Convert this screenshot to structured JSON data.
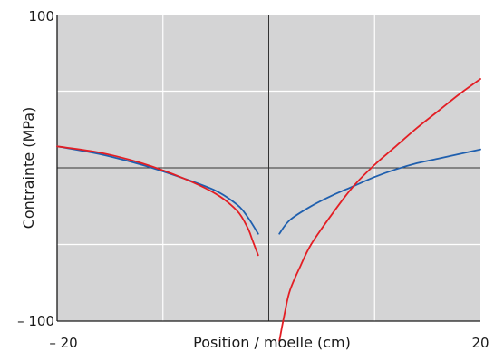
{
  "chart_data": {
    "type": "line",
    "title": "",
    "xlabel": "Position / moelle (cm)",
    "ylabel": "Contrainte (MPa)",
    "xlim": [
      -20,
      20
    ],
    "ylim": [
      -100,
      100
    ],
    "x_tick_labels": [
      "– 20",
      "20"
    ],
    "y_tick_labels": [
      "100",
      "– 100"
    ],
    "grid": true,
    "series": [
      {
        "color": "#1f5fae",
        "segments": [
          [
            [
              -20,
              14
            ],
            [
              -16,
              9
            ],
            [
              -12,
              2
            ],
            [
              -8,
              -7
            ],
            [
              -5,
              -15
            ],
            [
              -3,
              -24
            ],
            [
              -2,
              -32
            ],
            [
              -1,
              -43
            ]
          ],
          [
            [
              1,
              -43
            ],
            [
              2,
              -34
            ],
            [
              4,
              -25
            ],
            [
              6,
              -18
            ],
            [
              8,
              -12
            ],
            [
              10,
              -6
            ],
            [
              12,
              -1
            ],
            [
              14,
              3
            ],
            [
              16,
              6
            ],
            [
              18,
              9
            ],
            [
              20,
              12
            ]
          ]
        ]
      },
      {
        "color": "#e31e24",
        "segments": [
          [
            [
              -20,
              14
            ],
            [
              -16,
              10
            ],
            [
              -12,
              3
            ],
            [
              -8,
              -7
            ],
            [
              -5,
              -17
            ],
            [
              -3,
              -28
            ],
            [
              -2,
              -39
            ],
            [
              -1.5,
              -48
            ],
            [
              -1,
              -57
            ]
          ],
          [
            [
              1,
              -113
            ],
            [
              1.5,
              -95
            ],
            [
              2,
              -80
            ],
            [
              3,
              -64
            ],
            [
              4,
              -50
            ],
            [
              6,
              -30
            ],
            [
              8,
              -12
            ],
            [
              10,
              2
            ],
            [
              12,
              14
            ],
            [
              14,
              26
            ],
            [
              16,
              37
            ],
            [
              18,
              48
            ],
            [
              20,
              58
            ]
          ]
        ]
      }
    ]
  }
}
